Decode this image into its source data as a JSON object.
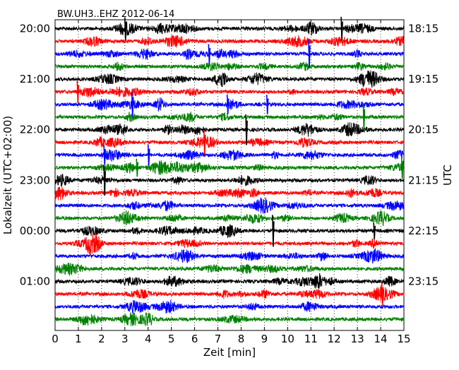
{
  "chart_data": {
    "type": "line",
    "title": "BW.UH3..EHZ 2012-06-14",
    "xlabel": "Zeit  [min]",
    "ylabel_left": "Lokalzeit (UTC+02:00)",
    "ylabel_right": "UTC",
    "xlim": [
      0,
      15
    ],
    "x_ticks": [
      "0",
      "1",
      "2",
      "3",
      "4",
      "5",
      "6",
      "7",
      "8",
      "9",
      "10",
      "11",
      "12",
      "13",
      "14",
      "15"
    ],
    "left_hour_labels": [
      "20:00",
      "21:00",
      "22:00",
      "23:00",
      "00:00",
      "01:00"
    ],
    "right_hour_labels": [
      "18:15",
      "19:15",
      "20:15",
      "21:15",
      "22:15",
      "23:15"
    ],
    "trace_count": 24,
    "trace_minutes": 15,
    "colors": [
      "#000000",
      "#ff0000",
      "#0000ff",
      "#008000"
    ],
    "spike_events": [
      {
        "trace": 0,
        "minute": 3.0,
        "amplitude": 1.6
      },
      {
        "trace": 0,
        "minute": 12.3,
        "amplitude": 1.7
      },
      {
        "trace": 2,
        "minute": 6.6,
        "amplitude": 1.4
      },
      {
        "trace": 2,
        "minute": 10.9,
        "amplitude": 2.0
      },
      {
        "trace": 5,
        "minute": 0.95,
        "amplitude": 1.6
      },
      {
        "trace": 6,
        "minute": 3.3,
        "amplitude": 1.8
      },
      {
        "trace": 6,
        "minute": 7.4,
        "amplitude": 1.4
      },
      {
        "trace": 6,
        "minute": 9.1,
        "amplitude": 1.4
      },
      {
        "trace": 7,
        "minute": 13.25,
        "amplitude": 1.9
      },
      {
        "trace": 8,
        "minute": 8.2,
        "amplitude": 2.2
      },
      {
        "trace": 9,
        "minute": 6.4,
        "amplitude": 1.8
      },
      {
        "trace": 10,
        "minute": 4.0,
        "amplitude": 1.5
      },
      {
        "trace": 10,
        "minute": 2.1,
        "amplitude": 1.4
      },
      {
        "trace": 11,
        "minute": 3.5,
        "amplitude": 1.3
      },
      {
        "trace": 11,
        "minute": 14.9,
        "amplitude": 1.6
      },
      {
        "trace": 12,
        "minute": 2.1,
        "amplitude": 2.2
      },
      {
        "trace": 16,
        "minute": 9.35,
        "amplitude": 2.3
      },
      {
        "trace": 16,
        "minute": 13.7,
        "amplitude": 1.2
      },
      {
        "trace": 21,
        "minute": 14.05,
        "amplitude": 1.6
      }
    ]
  }
}
